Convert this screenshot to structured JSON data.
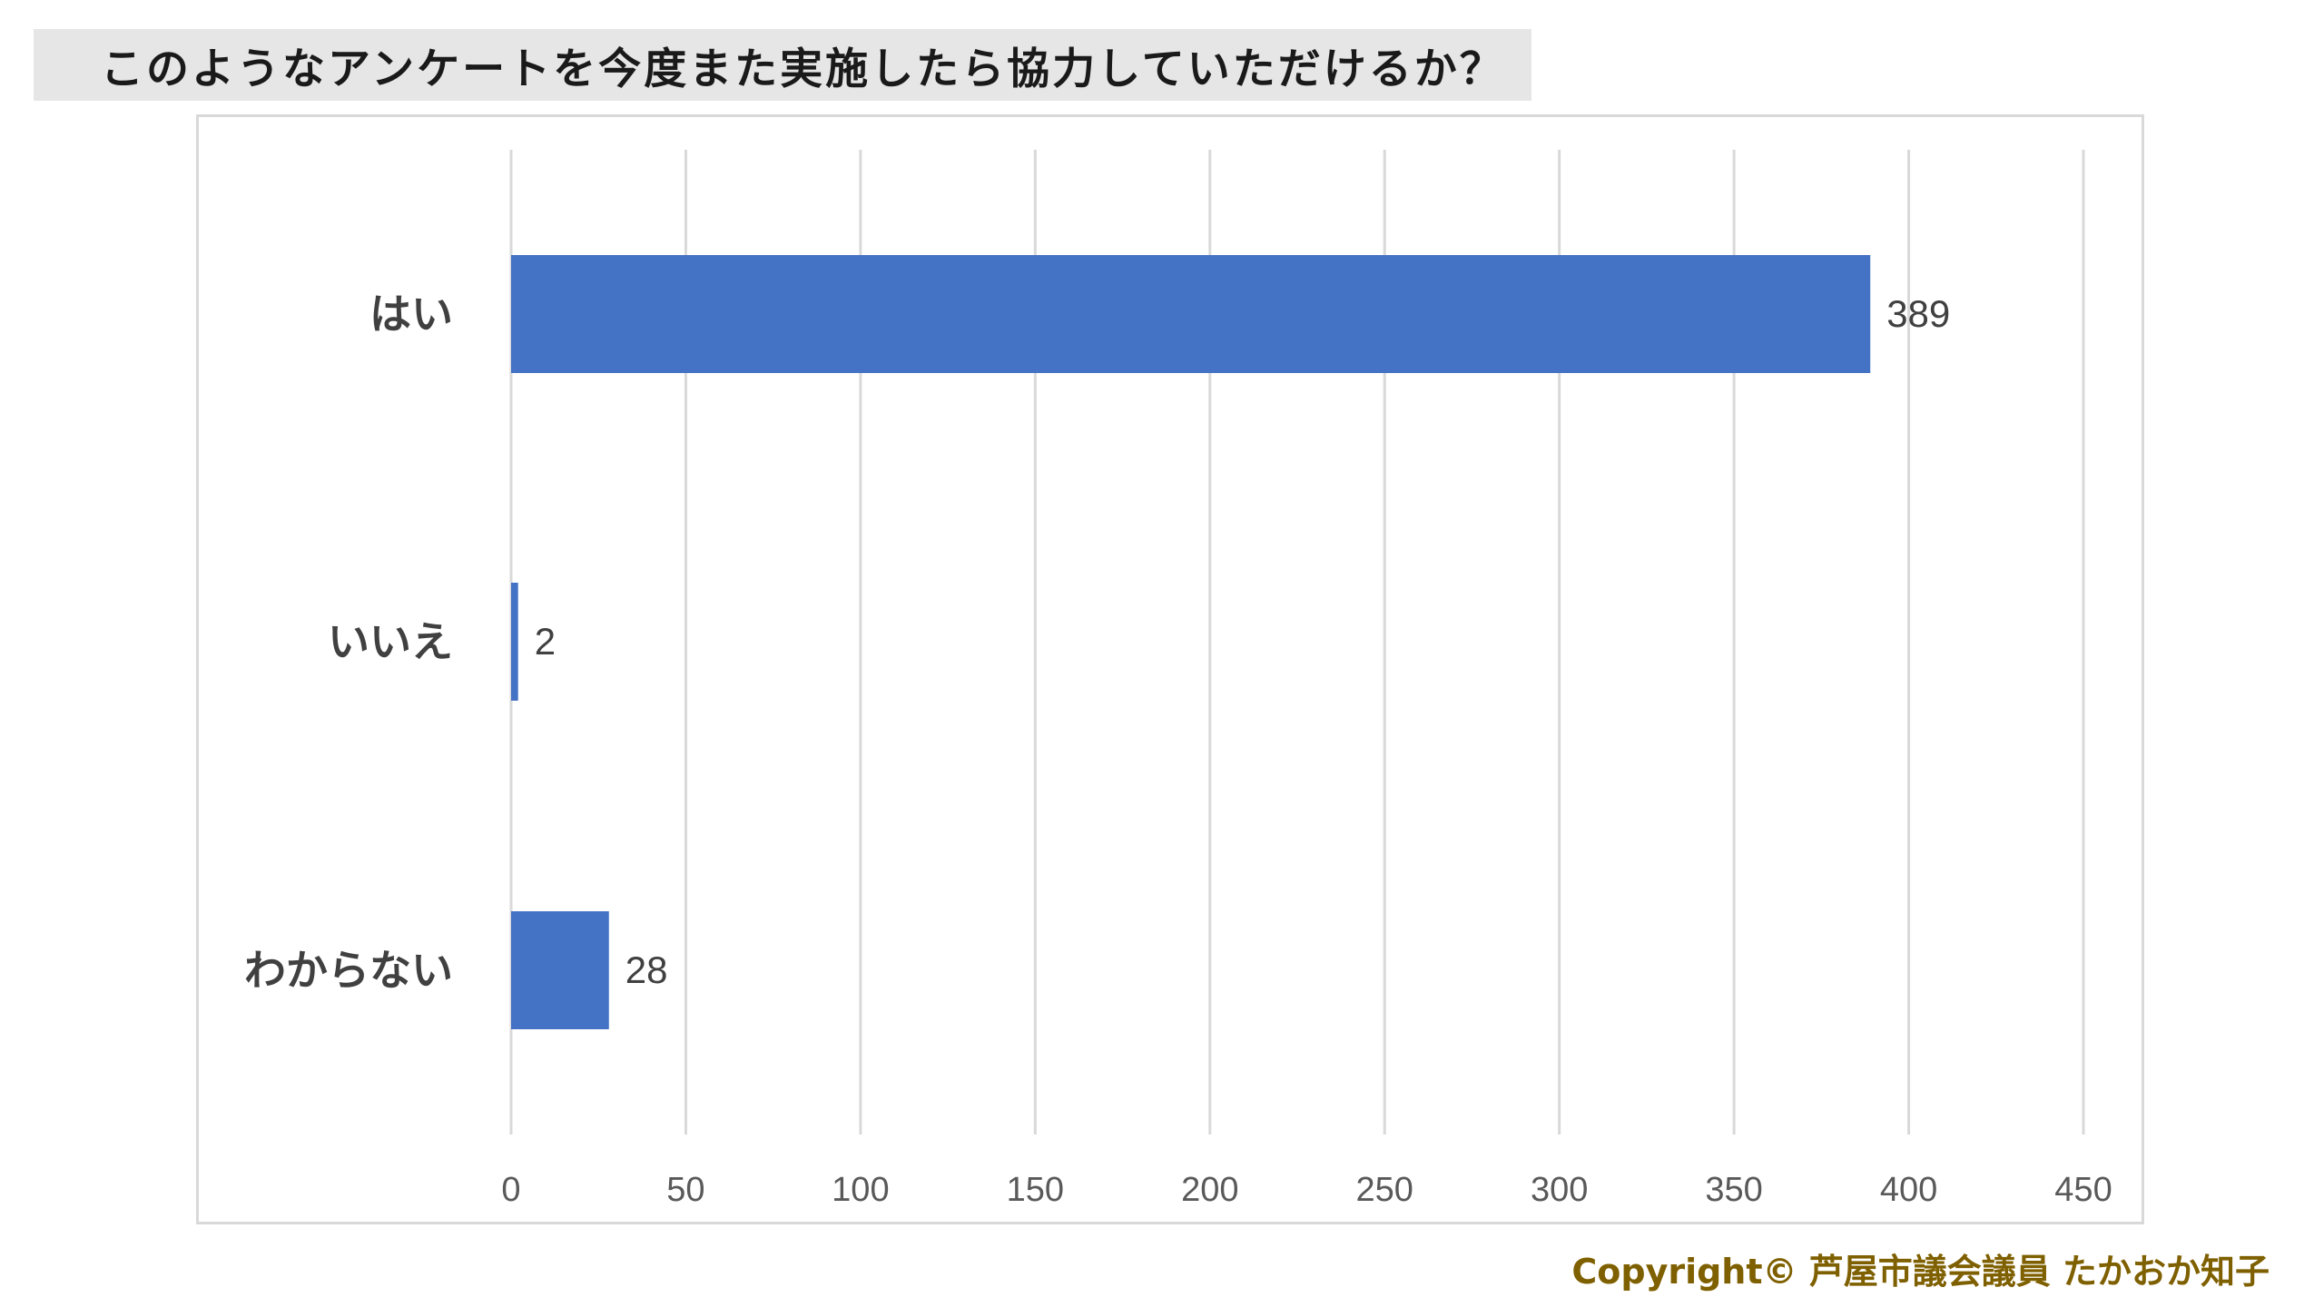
{
  "title": "このようなアンケートを今度また実施したら協力していただけるか？",
  "copyright": "Copyright© 芦屋市議会議員 たかおか知子",
  "colors": {
    "bar": "#4472c4",
    "grid": "#d9d9d9",
    "tick_text": "#595959",
    "category_text": "#404040",
    "value_text": "#404040",
    "title_bg": "#e6e6e6",
    "copyright": "#7f6000"
  },
  "chart_data": {
    "type": "bar",
    "orientation": "horizontal",
    "categories": [
      "はい",
      "いいえ",
      "わからない"
    ],
    "values": [
      389,
      2,
      28
    ],
    "data_labels": [
      "389",
      "2",
      "28"
    ],
    "xlim": [
      0,
      450
    ],
    "ticks": [
      0,
      50,
      100,
      150,
      200,
      250,
      300,
      350,
      400,
      450
    ],
    "tick_labels": [
      "0",
      "50",
      "100",
      "150",
      "200",
      "250",
      "300",
      "350",
      "400",
      "450"
    ],
    "grid": true,
    "legend": "none"
  }
}
